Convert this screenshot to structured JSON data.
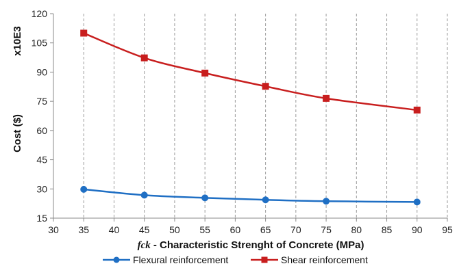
{
  "chart_data": {
    "type": "line",
    "title": "",
    "scale_note": "x10E3",
    "ylabel": "Cost ($)",
    "xlabel_symbol": "fck",
    "xlabel_rest": " - Characteristic Strenght of Concrete (MPa)",
    "xlim": [
      30,
      95
    ],
    "ylim": [
      15,
      120
    ],
    "xticks": [
      "30",
      "35",
      "40",
      "45",
      "50",
      "55",
      "60",
      "65",
      "70",
      "75",
      "80",
      "85",
      "90",
      "95"
    ],
    "yticks": [
      "15",
      "30",
      "45",
      "60",
      "75",
      "90",
      "105",
      "120"
    ],
    "grid": {
      "vertical": "dashed",
      "horizontal": "none"
    },
    "legend_position": "bottom",
    "series": [
      {
        "name": "Flexural reinforcement",
        "color": "#1f6fc4",
        "marker": "circle",
        "x": [
          35,
          45,
          55,
          65,
          75,
          90
        ],
        "y": [
          29.8,
          26.8,
          25.4,
          24.4,
          23.7,
          23.3
        ]
      },
      {
        "name": "Shear reinforcement",
        "color": "#c81e1e",
        "marker": "square",
        "x": [
          35,
          45,
          55,
          65,
          75,
          90
        ],
        "y": [
          110.0,
          97.3,
          89.5,
          82.7,
          76.5,
          70.5
        ]
      }
    ]
  }
}
